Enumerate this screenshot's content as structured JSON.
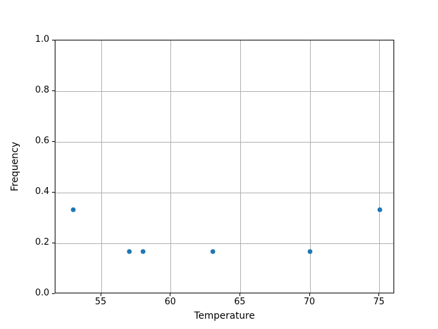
{
  "chart_data": {
    "type": "scatter",
    "title": "",
    "xlabel": "Temperature",
    "ylabel": "Frequency",
    "x": [
      53,
      57,
      58,
      63,
      70,
      75
    ],
    "y": [
      0.333,
      0.167,
      0.167,
      0.167,
      0.167,
      0.333
    ],
    "xticks": [
      55,
      60,
      65,
      70,
      75
    ],
    "xtick_labels": [
      "55",
      "60",
      "65",
      "70",
      "75"
    ],
    "yticks": [
      0.0,
      0.2,
      0.4,
      0.6,
      0.8,
      1.0
    ],
    "ytick_labels": [
      "0.0",
      "0.2",
      "0.4",
      "0.6",
      "0.8",
      "1.0"
    ],
    "xlim": [
      51.7,
      76.1
    ],
    "ylim": [
      0.0,
      1.0
    ],
    "grid": true,
    "legend": false,
    "marker_color": "#1f77b4",
    "grid_color": "#b0b0b0",
    "spine_color": "#000000",
    "background_color": "#ffffff"
  }
}
